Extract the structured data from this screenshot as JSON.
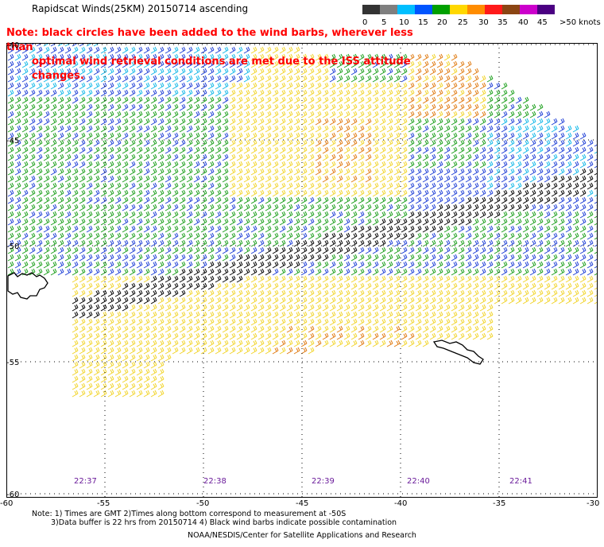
{
  "title": "Rapidscat Winds(25KM) 20150714 ascending",
  "note": {
    "line1": "Note: black circles have been added to the wind barbs, wherever less than",
    "line2": "optimal wind retrieval conditions are met due to the ISS attitude changes."
  },
  "colorbar": {
    "labels": [
      "0",
      "5",
      "10",
      "15",
      "20",
      "25",
      "30",
      "35",
      "40",
      "45",
      ">50 knots"
    ],
    "colors": [
      "#333333",
      "#7f7f7f",
      "#00bfff",
      "#0055ff",
      "#00a000",
      "#ffd800",
      "#ff8c00",
      "#ff1a1a",
      "#8b4513",
      "#cc00cc",
      "#4b0082"
    ]
  },
  "latitude_labels": [
    "-40",
    "-45",
    "-50",
    "-55",
    "-60"
  ],
  "longitude_labels": [
    "-60",
    "-55",
    "-50",
    "-45",
    "-40",
    "-35",
    "-30"
  ],
  "time_labels": [
    "22:37",
    "22:38",
    "22:39",
    "22:40",
    "22:41"
  ],
  "footer": {
    "line1": "Note: 1) Times are GMT 2)Times along bottom correspond to measurement at -50S",
    "line2": "3)Data buffer is 22 hrs from 20150714 4) Black wind barbs indicate possible contamination",
    "line3": "NOAA/NESDIS/Center for Satellite Applications and Research"
  }
}
